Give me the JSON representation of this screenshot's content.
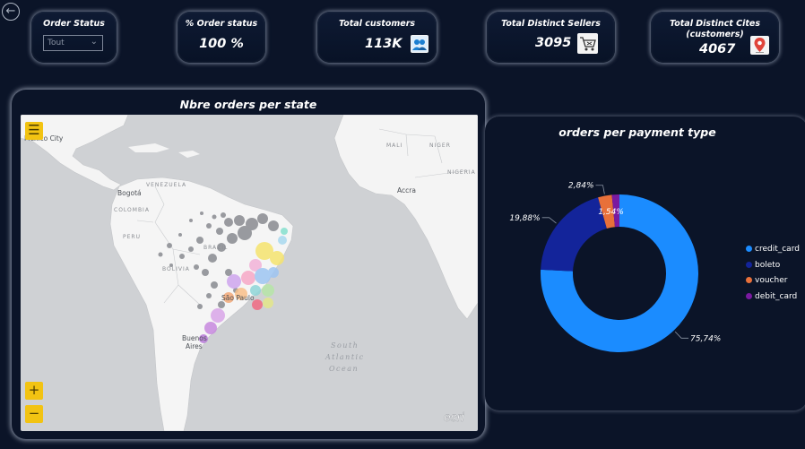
{
  "navigation": {
    "back_icon": "back-arrow-icon"
  },
  "filters": {
    "order_status": {
      "title": "Order Status",
      "selected": "Tout"
    }
  },
  "kpis": {
    "order_status_pct": {
      "title": "% Order status",
      "value": "100 %"
    },
    "total_customers": {
      "title": "Total customers",
      "value": "113K",
      "icon": "customers-icon"
    },
    "total_sellers": {
      "title": "Total Distinct Sellers",
      "value": "3095",
      "icon": "shopping-cart-icon"
    },
    "total_cities": {
      "title_line1": "Total Distinct Cites",
      "title_line2": "(customers)",
      "value": "4067",
      "icon": "location-pin-icon"
    }
  },
  "map": {
    "title": "Nbre orders per state",
    "labels": {
      "mexico_city": "Mexico City",
      "bogota": "Bogotá",
      "venezuela": "VENEZUELA",
      "colombia": "COLOMBIA",
      "peru": "PERU",
      "bolivia": "BOLIVIA",
      "brazil": "BRAZIL",
      "sao_paulo": "São Paulo",
      "buenos_aires_1": "Buenos",
      "buenos_aires_2": "Aires",
      "mali": "MALI",
      "niger": "NIGER",
      "nigeria": "NIGERIA",
      "accra": "Accra",
      "ocean_1": "South",
      "ocean_2": "Atlantic",
      "ocean_3": "Ocean",
      "esri": "esri"
    },
    "controls": {
      "menu_icon": "hamburger-menu-icon",
      "zoom_in": "+",
      "zoom_out": "−"
    }
  },
  "payment_chart": {
    "title": "orders per payment type",
    "chart_data": {
      "type": "pie",
      "categories": [
        "credit_card",
        "boleto",
        "voucher",
        "debit_card"
      ],
      "values": [
        75.74,
        19.88,
        2.84,
        1.54
      ],
      "value_labels": [
        "75,74%",
        "19,88%",
        "2,84%",
        "1,54%"
      ],
      "colors": [
        "#1b8cff",
        "#13249a",
        "#e8703a",
        "#7a1aa0"
      ],
      "legend_position": "right"
    }
  }
}
